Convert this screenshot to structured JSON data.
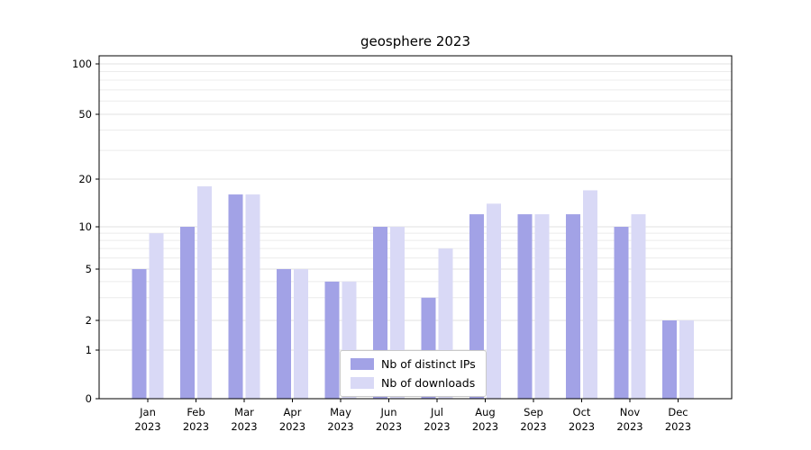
{
  "chart_data": {
    "type": "bar",
    "title": "geosphere 2023",
    "categories": [
      "Jan 2023",
      "Feb 2023",
      "Mar 2023",
      "Apr 2023",
      "May 2023",
      "Jun 2023",
      "Jul 2023",
      "Aug 2023",
      "Sep 2023",
      "Oct 2023",
      "Nov 2023",
      "Dec 2023"
    ],
    "series": [
      {
        "name": "Nb of distinct IPs",
        "color": "#a2a2e6",
        "values": [
          5,
          10,
          16,
          5,
          4,
          10,
          3,
          12,
          12,
          12,
          10,
          2
        ]
      },
      {
        "name": "Nb of downloads",
        "color": "#d9d9f6",
        "values": [
          9,
          18,
          16,
          5,
          4,
          10,
          7,
          14,
          12,
          17,
          12,
          2
        ]
      }
    ],
    "y_axis": {
      "scale": "symlog",
      "ticks": [
        0,
        1,
        2,
        5,
        10,
        20,
        50,
        100
      ],
      "minor_ticks": [
        3,
        4,
        6,
        7,
        8,
        9,
        30,
        40,
        60,
        70,
        80,
        90
      ],
      "range": [
        0,
        100
      ]
    },
    "x_axis": {
      "year_line": "2023"
    },
    "grid": "horizontal",
    "legend_position": "lower-center-inside",
    "colors": {
      "background": "#ffffff",
      "grid_major": "#e2e2e2",
      "grid_minor": "#ececec",
      "spine": "#000000"
    }
  }
}
